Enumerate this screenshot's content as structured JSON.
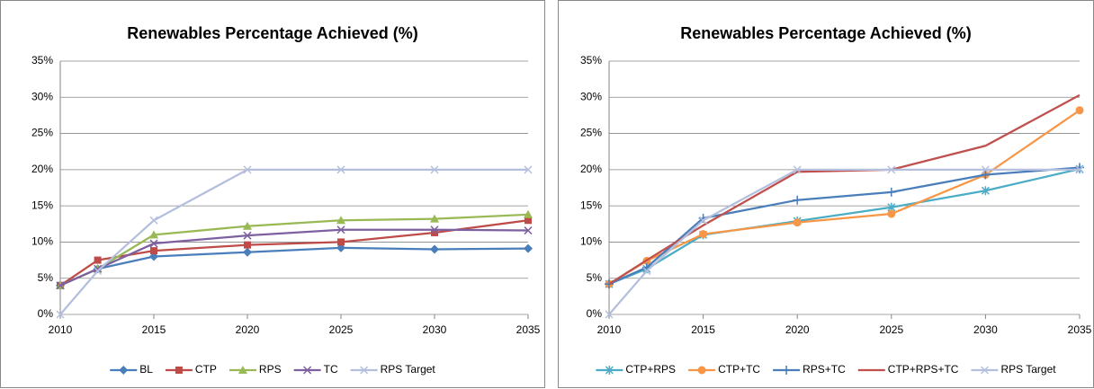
{
  "chart_data": [
    {
      "type": "line",
      "title": "Renewables Percentage Achieved (%)",
      "x": [
        2010,
        2012,
        2015,
        2020,
        2025,
        2030,
        2035
      ],
      "xlim": [
        2010,
        2035
      ],
      "xticks": [
        2010,
        2015,
        2020,
        2025,
        2030,
        2035
      ],
      "ylim": [
        0,
        35
      ],
      "yticks": [
        {
          "value": 0,
          "label": "0%"
        },
        {
          "value": 5,
          "label": "5%"
        },
        {
          "value": 10,
          "label": "10%"
        },
        {
          "value": 15,
          "label": "15%"
        },
        {
          "value": 20,
          "label": "20%"
        },
        {
          "value": 25,
          "label": "25%"
        },
        {
          "value": 30,
          "label": "30%"
        },
        {
          "value": 35,
          "label": "35%"
        }
      ],
      "grid": true,
      "legend": "bottom",
      "series": [
        {
          "name": "BL",
          "color": "#4a7ebb",
          "marker": "diamond",
          "values": [
            4,
            6.3,
            8,
            8.6,
            9.2,
            9,
            9.1
          ]
        },
        {
          "name": "CTP",
          "color": "#be4b48",
          "marker": "square",
          "values": [
            4,
            7.5,
            8.8,
            9.6,
            10,
            11.3,
            13
          ]
        },
        {
          "name": "RPS",
          "color": "#98b954",
          "marker": "triangle",
          "values": [
            4,
            6.3,
            11,
            12.2,
            13,
            13.2,
            13.8
          ]
        },
        {
          "name": "TC",
          "color": "#7d60a0",
          "marker": "x",
          "values": [
            4,
            6.3,
            9.8,
            10.9,
            11.7,
            11.7,
            11.6
          ]
        },
        {
          "name": "RPS Target",
          "color": "#b3bfdd",
          "marker": "x",
          "values": [
            0,
            6,
            13,
            20,
            20,
            20,
            20
          ]
        }
      ]
    },
    {
      "type": "line",
      "title": "Renewables Percentage Achieved (%)",
      "x": [
        2010,
        2012,
        2015,
        2020,
        2025,
        2030,
        2035
      ],
      "xlim": [
        2010,
        2035
      ],
      "xticks": [
        2010,
        2015,
        2020,
        2025,
        2030,
        2035
      ],
      "ylim": [
        0,
        35
      ],
      "yticks": [
        {
          "value": 0,
          "label": "0%"
        },
        {
          "value": 5,
          "label": "5%"
        },
        {
          "value": 10,
          "label": "10%"
        },
        {
          "value": 15,
          "label": "15%"
        },
        {
          "value": 20,
          "label": "20%"
        },
        {
          "value": 25,
          "label": "25%"
        },
        {
          "value": 30,
          "label": "30%"
        },
        {
          "value": 35,
          "label": "35%"
        }
      ],
      "grid": true,
      "legend": "bottom",
      "series": [
        {
          "name": "CTP+RPS",
          "color": "#4bacc6",
          "marker": "star",
          "values": [
            4.2,
            6.3,
            11,
            12.9,
            14.8,
            17.1,
            20.1
          ]
        },
        {
          "name": "CTP+TC",
          "color": "#f79646",
          "marker": "circle",
          "values": [
            4.2,
            7.4,
            11.1,
            12.7,
            13.9,
            19.3,
            28.2
          ]
        },
        {
          "name": "RPS+TC",
          "color": "#4a7ebb",
          "marker": "plus",
          "values": [
            4.2,
            6.5,
            13.3,
            15.8,
            16.9,
            19.3,
            20.3
          ]
        },
        {
          "name": "CTP+RPS+TC",
          "color": "#c0504d",
          "marker": "none",
          "values": [
            4.2,
            7.5,
            12.3,
            19.7,
            20,
            23.3,
            30.3
          ]
        },
        {
          "name": "RPS Target",
          "color": "#b3bfdd",
          "marker": "x",
          "values": [
            0,
            6,
            13,
            20,
            20,
            20,
            20
          ]
        }
      ]
    }
  ]
}
